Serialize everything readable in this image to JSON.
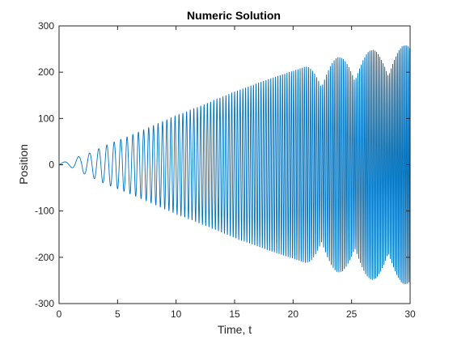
{
  "chart_data": {
    "type": "line",
    "title": "Numeric Solution",
    "xlabel": "Time, t",
    "ylabel": "Position",
    "xlim": [
      0,
      30
    ],
    "ylim": [
      -300,
      300
    ],
    "x_ticks": [
      "0",
      "5",
      "10",
      "15",
      "20",
      "25",
      "30"
    ],
    "y_ticks": [
      "-300",
      "-200",
      "-100",
      "0",
      "100",
      "200",
      "300"
    ],
    "grid": false,
    "series": [
      {
        "description_points": "oscillation whose envelope grows from ~0 toward ~260, frequency increasing with time",
        "color": "#0072BD",
        "envelope": {
          "t": [
            0,
            1,
            2,
            3,
            4,
            5,
            6,
            8,
            10,
            12,
            15,
            18,
            20,
            22,
            25,
            28,
            30
          ],
          "amplitude": [
            2,
            8,
            18,
            30,
            42,
            52,
            62,
            84,
            106,
            126,
            158,
            186,
            203,
            220,
            240,
            255,
            260
          ]
        },
        "samples": [
          {
            "x": 0,
            "y": 0
          },
          {
            "x": 1.0,
            "y": 7
          },
          {
            "x": 1.8,
            "y": -15
          },
          {
            "x": 2.6,
            "y": 25
          },
          {
            "x": 3.2,
            "y": -35
          },
          {
            "x": 3.8,
            "y": 40
          },
          {
            "x": 5.0,
            "y": 50
          },
          {
            "x": 10.0,
            "y": 105
          },
          {
            "x": 15.0,
            "y": 160
          },
          {
            "x": 20.0,
            "y": 205
          },
          {
            "x": 25.0,
            "y": 240
          },
          {
            "x": 30.0,
            "y": 260
          }
        ]
      }
    ]
  }
}
